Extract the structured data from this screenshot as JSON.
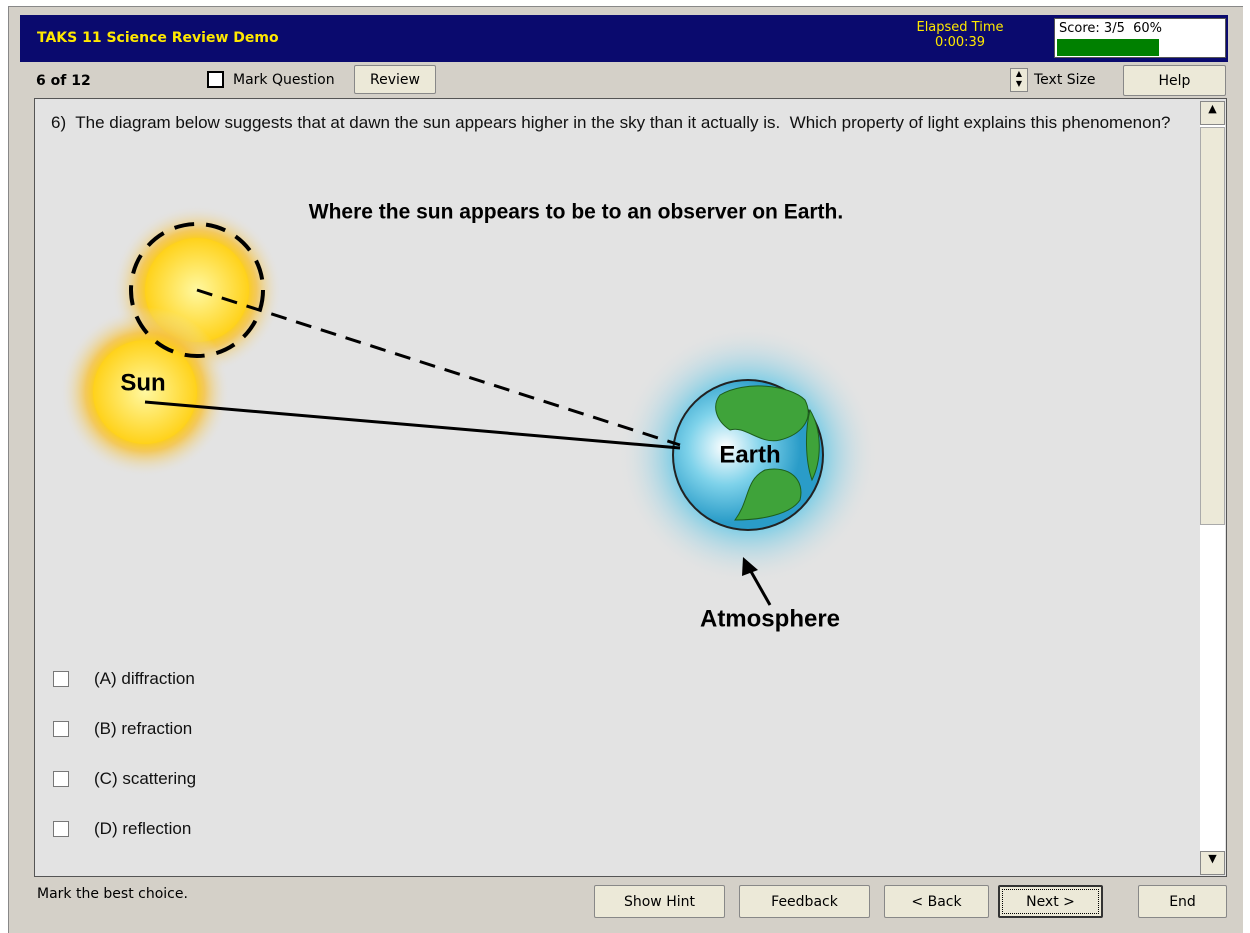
{
  "header": {
    "title": "TAKS 11 Science Review Demo",
    "elapsed_label": "Elapsed Time",
    "elapsed_time": "0:00:39",
    "score": "Score: 3/5  60%"
  },
  "toolbar": {
    "progress": "6 of 12",
    "mark_question": "Mark Question",
    "review": "Review",
    "text_size": "Text Size",
    "help": "Help"
  },
  "question": {
    "text": "6)  The diagram below suggests that at dawn the sun appears higher in the sky than it actually is.  Which property of light explains this phenomenon?",
    "diagram": {
      "title": "Where the sun appears to be to an observer on Earth.",
      "sun": "Sun",
      "earth": "Earth",
      "atmosphere": "Atmosphere"
    },
    "choices": [
      "(A) diffraction",
      "(B) refraction",
      "(C) scattering",
      "(D) reflection"
    ]
  },
  "footer": {
    "instruction": "Mark the best choice.",
    "buttons": [
      "Show Hint",
      "Feedback",
      "< Back",
      "Next >",
      "End"
    ]
  }
}
